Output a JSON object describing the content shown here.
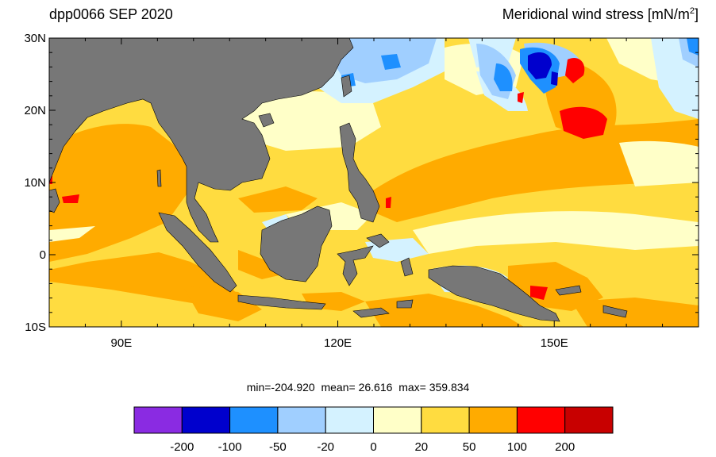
{
  "title_left": "dpp0066 SEP 2020",
  "title_right_text": "Meridional wind stress [mN/m",
  "title_right_sup": "2",
  "title_right_close": "]",
  "lat_labels": [
    "30N",
    "20N",
    "10N",
    "0",
    "10S"
  ],
  "lat_values": [
    30,
    20,
    10,
    0,
    -10
  ],
  "lon_labels": [
    "90E",
    "120E",
    "150E"
  ],
  "lon_values": [
    90,
    120,
    150
  ],
  "map_extent": {
    "lon_min": 80,
    "lon_max": 170,
    "lat_min": -10,
    "lat_max": 30
  },
  "stats": {
    "min_label": "min=",
    "min": "-204.920",
    "mean_label": "mean=",
    "mean": " 26.616",
    "max_label": "max=",
    "max": " 359.834"
  },
  "colorbar": {
    "colors": [
      "#8a2be2",
      "#0000cd",
      "#1e90ff",
      "#a0cfff",
      "#d4f2ff",
      "#ffffc8",
      "#ffdc40",
      "#ffab00",
      "#ff0000",
      "#c80000"
    ],
    "labels": [
      "-200",
      "-100",
      "-50",
      "-20",
      "0",
      "20",
      "50",
      "100",
      "200"
    ]
  },
  "colors": {
    "land": "#777777",
    "ocean_base": "#ffdc40"
  }
}
